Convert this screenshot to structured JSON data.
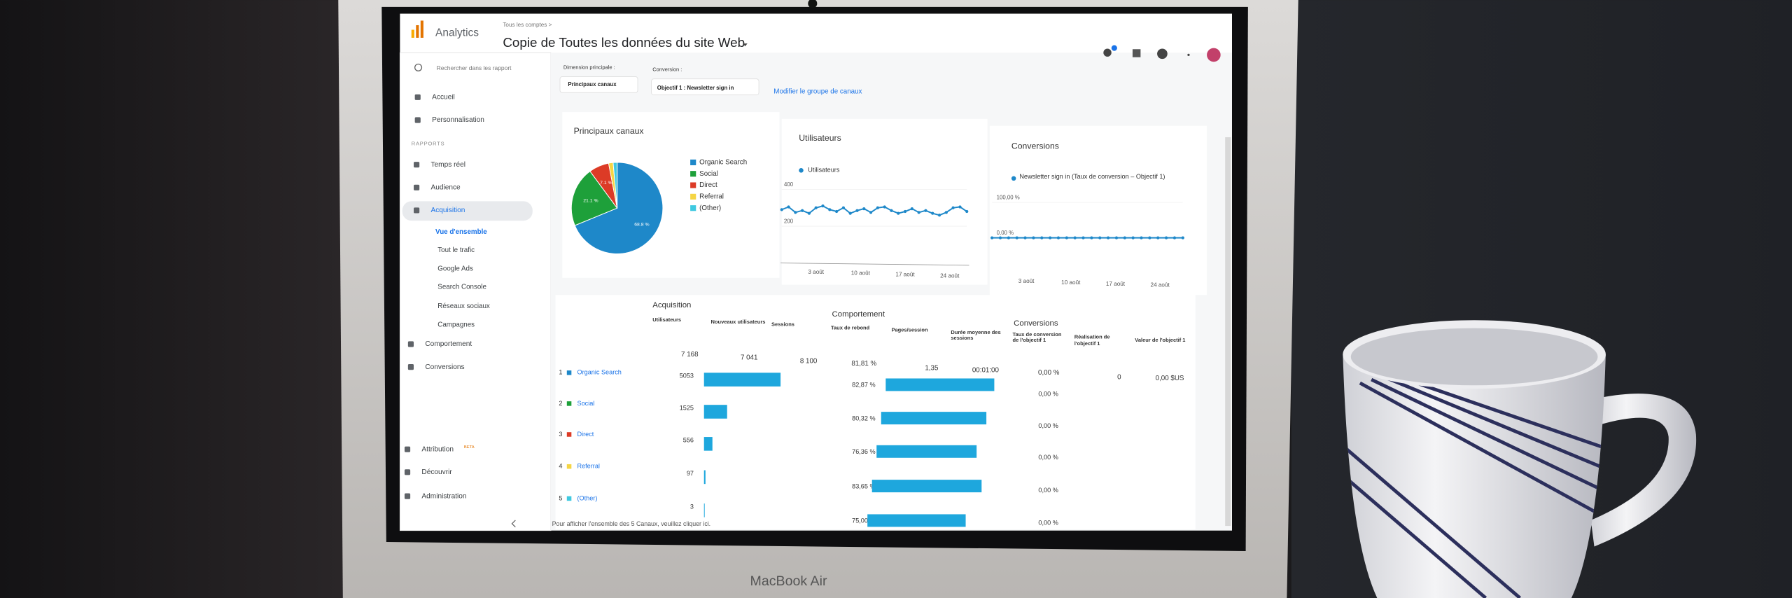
{
  "header": {
    "product": "Analytics",
    "breadcrumb": "Tous les comptes >",
    "title": "Copie de Toutes les données du site Web"
  },
  "sidebar": {
    "search": "Rechercher dans les rapport",
    "items": [
      "Accueil",
      "Personnalisation"
    ],
    "section": "RAPPORTS",
    "reports": [
      "Temps réel",
      "Audience",
      "Acquisition"
    ],
    "acquisition_sub": [
      "Vue d'ensemble",
      "Tout le trafic",
      "Google Ads",
      "Search Console",
      "Réseaux sociaux",
      "Campagnes"
    ],
    "more": [
      "Comportement",
      "Conversions"
    ],
    "bottom": [
      "Attribution",
      "Découvrir",
      "Administration"
    ],
    "beta": "BETA"
  },
  "controls": {
    "dimension_label": "Dimension principale :",
    "dimension": "Principaux canaux",
    "conversion_label": "Conversion :",
    "conversion": "Objectif 1 : Newsletter sign in",
    "modify": "Modifier le groupe de canaux"
  },
  "channels_chart": {
    "title": "Principaux canaux",
    "labels": [
      "Organic Search",
      "Social",
      "Direct",
      "Referral",
      "(Other)"
    ],
    "colors": [
      "#1e88c9",
      "#1ea03a",
      "#dc3b26",
      "#f5d544",
      "#3fc9e0"
    ],
    "values": [
      68.8,
      21.1,
      7.1,
      1.6,
      1.4
    ],
    "value_labels": [
      "68.8 %",
      "21.1 %",
      "7.1 %",
      null,
      null
    ]
  },
  "users_chart": {
    "title": "Utilisateurs",
    "legend": "Utilisateurs",
    "color": "#1e88c9",
    "ylim": [
      0,
      435
    ],
    "yticks": [
      200,
      400
    ],
    "values": [
      290,
      305,
      275,
      285,
      270,
      300,
      310,
      290,
      280,
      300,
      270,
      285,
      295,
      275,
      300,
      305,
      285,
      270,
      280,
      295,
      275,
      285,
      270,
      260,
      275,
      300,
      305,
      280
    ],
    "xticks": [
      "3 août",
      "10 août",
      "17 août",
      "24 août"
    ]
  },
  "conversions_chart": {
    "title": "Conversions",
    "legend": "Newsletter sign in (Taux de conversion – Objectif 1)",
    "color": "#1e88c9",
    "ylim": [
      0,
      100
    ],
    "yticks": [
      {
        "value": 100,
        "label": "100,00 %"
      },
      {
        "value": 0,
        "label": "0,00 %"
      }
    ],
    "values": [
      0,
      0,
      0,
      0,
      0,
      0,
      0,
      0,
      0,
      0,
      0,
      0,
      0,
      0,
      0,
      0,
      0,
      0,
      0,
      0,
      0,
      0,
      0,
      0
    ],
    "xticks": [
      "3 août",
      "10 août",
      "17 août",
      "24 août"
    ]
  },
  "table": {
    "groups": [
      "Acquisition",
      "Comportement",
      "Conversions"
    ],
    "columns": [
      "Utilisateurs",
      "Nouveaux utilisateurs",
      "Sessions",
      "Taux de rebond",
      "Pages/session",
      "Durée moyenne des sessions",
      "Taux de conversion de l'objectif 1",
      "Réalisation de l'objectif 1",
      "Valeur de l'objectif 1"
    ],
    "totals": [
      "7 168",
      "7 041",
      "8 100",
      "81,81 %",
      "1,35",
      "00:01:00",
      "0,00 %",
      "0",
      "0,00 $US"
    ],
    "ranks": [
      "1",
      "2",
      "3",
      "4",
      "5"
    ],
    "channels": [
      "Organic Search",
      "Social",
      "Direct",
      "Referral",
      "(Other)"
    ],
    "users": [
      5053,
      1525,
      556,
      97,
      3
    ],
    "bounce": [
      82.87,
      80.32,
      76.36,
      83.65,
      75.0
    ],
    "bounce_labels": [
      "82,87 %",
      "80,32 %",
      "76,36 %",
      "83,65 %",
      "75,00 %"
    ],
    "conversion_labels": [
      "0,00 %",
      "0,00 %",
      "0,00 %",
      "0,00 %",
      "0,00 %"
    ],
    "footer": "Pour afficher l'ensemble des 5 Canaux, veuillez cliquer ici."
  },
  "laptop": {
    "model": "MacBook Air"
  }
}
